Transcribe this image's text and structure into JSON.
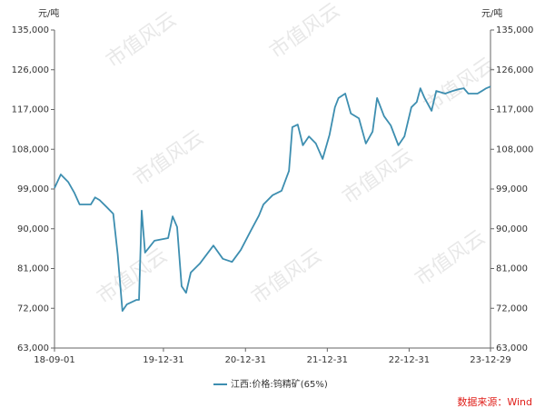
{
  "chart_data": {
    "type": "line",
    "y_label": "元/吨",
    "y2_label": "元/吨",
    "x": [
      "18-09-01",
      "18-09-29",
      "18-11-01",
      "18-11-28",
      "18-12-22",
      "19-02-10",
      "19-03-01",
      "19-03-21",
      "19-04-22",
      "19-05-21",
      "19-06-10",
      "19-07-01",
      "19-07-21",
      "19-09-01",
      "19-09-13",
      "19-09-25",
      "19-10-10",
      "19-11-04",
      "19-11-21",
      "20-01-21",
      "20-02-10",
      "20-03-01",
      "20-03-21",
      "20-04-10",
      "20-05-01",
      "20-06-10",
      "20-08-10",
      "20-09-21",
      "20-11-01",
      "20-12-10",
      "21-01-21",
      "21-03-01",
      "21-03-21",
      "21-05-01",
      "21-06-10",
      "21-07-13",
      "21-07-28",
      "21-08-21",
      "21-09-13",
      "21-10-10",
      "21-11-10",
      "21-12-10",
      "22-01-10",
      "22-02-03",
      "22-02-19",
      "22-03-21",
      "22-04-15",
      "22-05-21",
      "22-06-21",
      "22-07-21",
      "22-08-10",
      "22-09-10",
      "22-10-10",
      "22-11-13",
      "22-12-10",
      "23-01-10",
      "23-02-03",
      "23-02-19",
      "23-03-10",
      "23-04-10",
      "23-05-01",
      "23-06-10",
      "23-07-13",
      "23-08-10",
      "23-09-01",
      "23-09-21",
      "23-11-01",
      "23-11-21",
      "23-12-10",
      "23-12-29"
    ],
    "series": [
      {
        "name": "江西:价格:钨精矿(65%)",
        "color": "#3d8eb0",
        "values": [
          99200,
          102300,
          100600,
          98200,
          95500,
          95500,
          97100,
          96500,
          94900,
          93400,
          84200,
          71400,
          72900,
          73900,
          73900,
          94100,
          84600,
          86200,
          87300,
          87900,
          92800,
          90400,
          77000,
          75500,
          80100,
          82100,
          86200,
          83200,
          82500,
          85200,
          89300,
          93000,
          95500,
          97600,
          98600,
          103100,
          113000,
          113600,
          108900,
          110900,
          109300,
          105800,
          111300,
          117500,
          119600,
          120600,
          116100,
          115000,
          109300,
          112000,
          119600,
          115500,
          113400,
          108900,
          110900,
          117500,
          118700,
          121800,
          119600,
          116700,
          121200,
          120600,
          121200,
          121600,
          121800,
          120600,
          120600,
          121200,
          121800,
          122200
        ]
      }
    ],
    "xlim": [
      "18-09-01",
      "23-12-29"
    ],
    "xticks": [
      "18-09-01",
      "19-12-31",
      "20-12-31",
      "21-12-31",
      "22-12-31",
      "23-12-29"
    ],
    "ylim": [
      63000,
      135000
    ],
    "yticks": [
      {
        "value": 63000,
        "label": "63,000"
      },
      {
        "value": 72000,
        "label": "72,000"
      },
      {
        "value": 81000,
        "label": "81,000"
      },
      {
        "value": 90000,
        "label": "90,000"
      },
      {
        "value": 99000,
        "label": "99,000"
      },
      {
        "value": 108000,
        "label": "108,000"
      },
      {
        "value": 117000,
        "label": "117,000"
      },
      {
        "value": 126000,
        "label": "126,000"
      },
      {
        "value": 135000,
        "label": "135,000"
      }
    ],
    "y2lim": [
      63000,
      135000
    ],
    "y2ticks": [
      {
        "value": 63000,
        "label": "63,000"
      },
      {
        "value": 72000,
        "label": "72,000"
      },
      {
        "value": 81000,
        "label": "81,000"
      },
      {
        "value": 90000,
        "label": "90,000"
      },
      {
        "value": 99000,
        "label": "99,000"
      },
      {
        "value": 108000,
        "label": "108,000"
      },
      {
        "value": 117000,
        "label": "117,000"
      },
      {
        "value": 126000,
        "label": "126,000"
      },
      {
        "value": 135000,
        "label": "135,000"
      }
    ],
    "grid": false,
    "source": "数据来源：Wind",
    "watermark": "市值风云"
  }
}
